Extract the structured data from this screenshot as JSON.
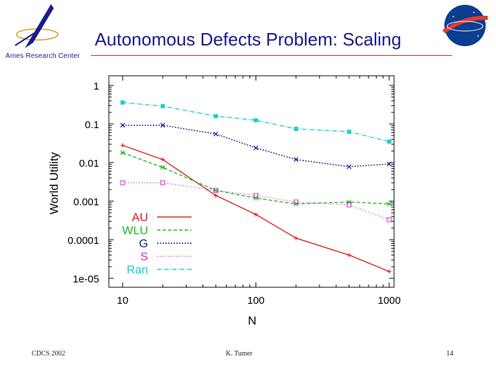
{
  "slide": {
    "title": "Autonomous Defects Problem: Scaling",
    "center_label": "Ames Research Center",
    "nasa_logo_text": "NASA",
    "footer_left": "CDCS 2002",
    "footer_center": "K. Tumer",
    "footer_right": "14"
  },
  "chart_data": {
    "type": "line",
    "xlabel": "N",
    "ylabel": "World Utility",
    "x_scale": "log",
    "y_scale": "log",
    "xlim": [
      10,
      1000
    ],
    "ylim": [
      1e-05,
      1
    ],
    "x_ticks": [
      "10",
      "100",
      "1000"
    ],
    "y_ticks": [
      "1",
      "0.1",
      "0.01",
      "0.001",
      "0.0001",
      "1e-05"
    ],
    "legend_position": "bottom-left",
    "grid": false,
    "series": [
      {
        "name": "AU",
        "color": "#dd2222",
        "dash": "",
        "marker": "plus",
        "x": [
          10,
          20,
          50,
          100,
          200,
          500,
          1000
        ],
        "y": [
          0.028,
          0.012,
          0.0014,
          0.00045,
          0.00011,
          4e-05,
          1.5e-05
        ]
      },
      {
        "name": "WLU",
        "color": "#22bb22",
        "dash": "5,3",
        "marker": "cross",
        "x": [
          10,
          20,
          50,
          100,
          200,
          500,
          1000
        ],
        "y": [
          0.018,
          0.0075,
          0.0019,
          0.0012,
          0.00085,
          0.00095,
          0.00085
        ]
      },
      {
        "name": "G",
        "color": "#1a1a99",
        "dash": "2,2",
        "marker": "x",
        "x": [
          10,
          20,
          50,
          100,
          200,
          500,
          1000
        ],
        "y": [
          0.093,
          0.093,
          0.055,
          0.024,
          0.012,
          0.0078,
          0.0092
        ]
      },
      {
        "name": "S",
        "color": "#cc33cc",
        "dash": "1,3",
        "marker": "box",
        "x": [
          10,
          20,
          50,
          100,
          200,
          500,
          1000
        ],
        "y": [
          0.003,
          0.003,
          0.0019,
          0.0014,
          0.00095,
          0.0008,
          0.00033
        ]
      },
      {
        "name": "Ran",
        "color": "#22cccc",
        "dash": "6,2,1,2",
        "marker": "filled-square",
        "x": [
          10,
          20,
          50,
          100,
          200,
          500,
          1000
        ],
        "y": [
          0.36,
          0.29,
          0.16,
          0.125,
          0.075,
          0.063,
          0.035
        ]
      }
    ]
  }
}
